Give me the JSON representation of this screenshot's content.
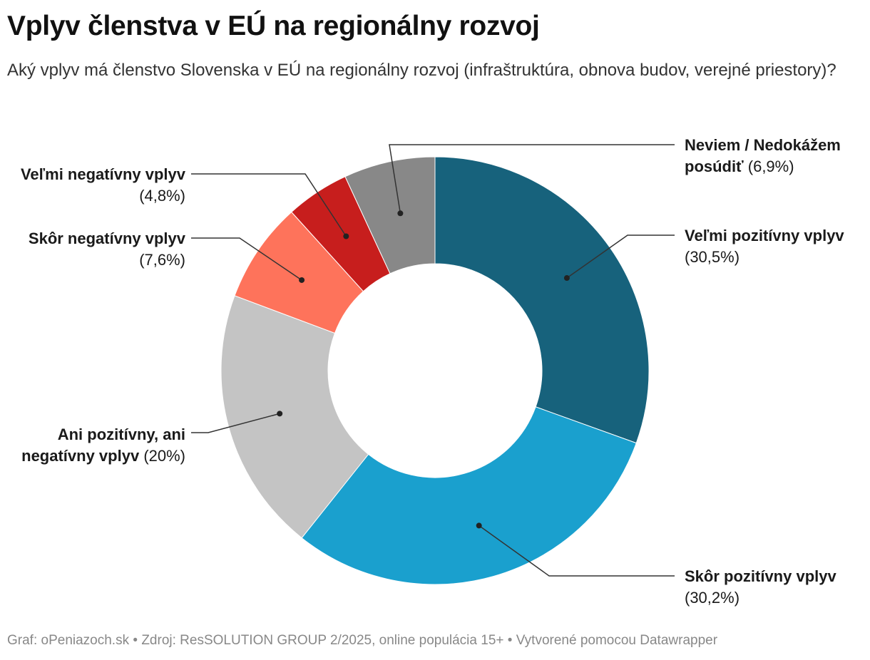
{
  "title": "Vplyv členstva v EÚ na regionálny rozvoj",
  "subtitle": "Aký vplyv má členstvo Slovenska v EÚ na regionálny rozvoj (infraštruktúra, obnova budov, verejné priestory)?",
  "footer": {
    "graph_label": "Graf:",
    "graph_value": "oPeniazoch.sk",
    "separator": "•",
    "source_label": "Zdroj:",
    "source_value": "ResSOLUTION GROUP 2/2025, online populácia 15+",
    "credit": "Vytvorené pomocou Datawrapper"
  },
  "chart_data": {
    "type": "pie",
    "variant": "donut",
    "title": "Vplyv členstva v EÚ na regionálny rozvoj",
    "unit": "%",
    "slices": [
      {
        "key": "velmi-pozitivny",
        "label": "Veľmi pozitívny vplyv",
        "label_lines": [
          "Veľmi pozitívny vplyv"
        ],
        "value_label": "(30,5%)",
        "value": 30.5,
        "color": "#17627c",
        "label_side": "right"
      },
      {
        "key": "skor-pozitivny",
        "label": "Skôr pozitívny vplyv",
        "label_lines": [
          "Skôr pozitívny vplyv"
        ],
        "value_label": "(30,2%)",
        "value": 30.2,
        "color": "#1aa0ce",
        "label_side": "right"
      },
      {
        "key": "ani-ani",
        "label": "Ani pozitívny, ani negatívny vplyv",
        "label_lines": [
          "Ani pozitívny, ani",
          "negatívny vplyv"
        ],
        "value_label": "(20%)",
        "value": 20,
        "color": "#c4c4c4",
        "label_side": "left"
      },
      {
        "key": "skor-negativny",
        "label": "Skôr negatívny vplyv",
        "label_lines": [
          "Skôr negatívny vplyv"
        ],
        "value_label": "(7,6%)",
        "value": 7.6,
        "color": "#fe735b",
        "label_side": "left"
      },
      {
        "key": "velmi-negativny",
        "label": "Veľmi negatívny vplyv",
        "label_lines": [
          "Veľmi negatívny vplyv"
        ],
        "value_label": "(4,8%)",
        "value": 4.8,
        "color": "#c71e1d",
        "label_side": "left"
      },
      {
        "key": "neviem",
        "label": "Neviem / Nedokážem posúdiť",
        "label_lines": [
          "Neviem / Nedokážem",
          "posúdiť"
        ],
        "value_label": "(6,9%)",
        "value": 6.9,
        "color": "#888888",
        "label_side": "right"
      }
    ]
  }
}
